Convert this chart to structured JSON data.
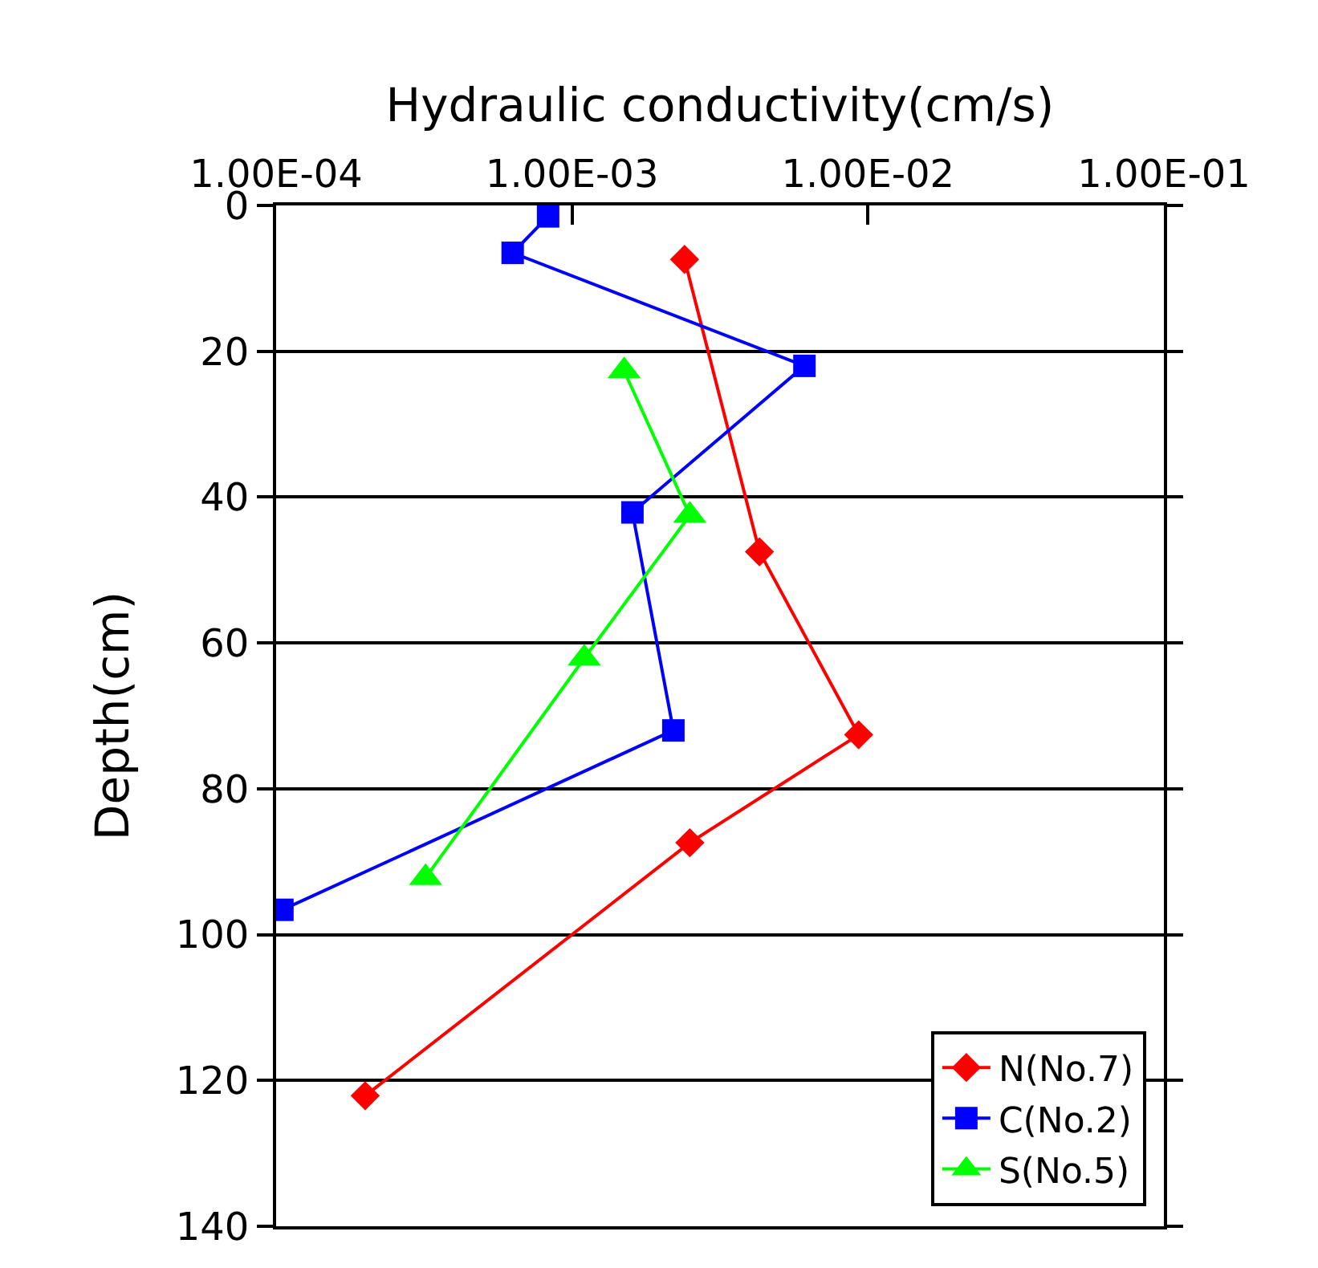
{
  "chart_data": {
    "type": "line",
    "xlabel": "Hydraulic conductivity(cm/s)",
    "ylabel": "Depth(cm)",
    "log": "x",
    "grid": "y",
    "legend": "bottom right",
    "xlim": [
      0.0001,
      0.1
    ],
    "xticks": [
      {
        "value": 0.0001,
        "label": "1.00E-04"
      },
      {
        "value": 0.001,
        "label": "1.00E-03"
      },
      {
        "value": 0.01,
        "label": "1.00E-02"
      },
      {
        "value": 0.1,
        "label": "1.00E-01"
      }
    ],
    "ylim": [
      140,
      0
    ],
    "yticks": [
      0,
      20,
      40,
      60,
      80,
      100,
      120,
      140
    ],
    "series": [
      {
        "name": "N(No.7)",
        "color": "#ff0000",
        "marker": "diamond",
        "x": [
          0.0024,
          0.0043,
          0.0093,
          0.0025,
          0.0002
        ],
        "values": [
          7.4,
          47.5,
          72.6,
          87.4,
          122.1
        ]
      },
      {
        "name": "C(No.2)",
        "color": "#0000ff",
        "marker": "square",
        "x": [
          0.00083,
          0.00063,
          0.0061,
          0.0016,
          0.0022,
          0.000105
        ],
        "values": [
          1.5,
          6.5,
          22,
          42.1,
          72,
          96.6
        ]
      },
      {
        "name": "S(No.5)",
        "color": "#00ff00",
        "marker": "triangle",
        "x": [
          0.0015,
          0.0025,
          0.0011,
          0.00032
        ],
        "values": [
          22.7,
          42.5,
          62.1,
          92.2
        ]
      }
    ]
  }
}
